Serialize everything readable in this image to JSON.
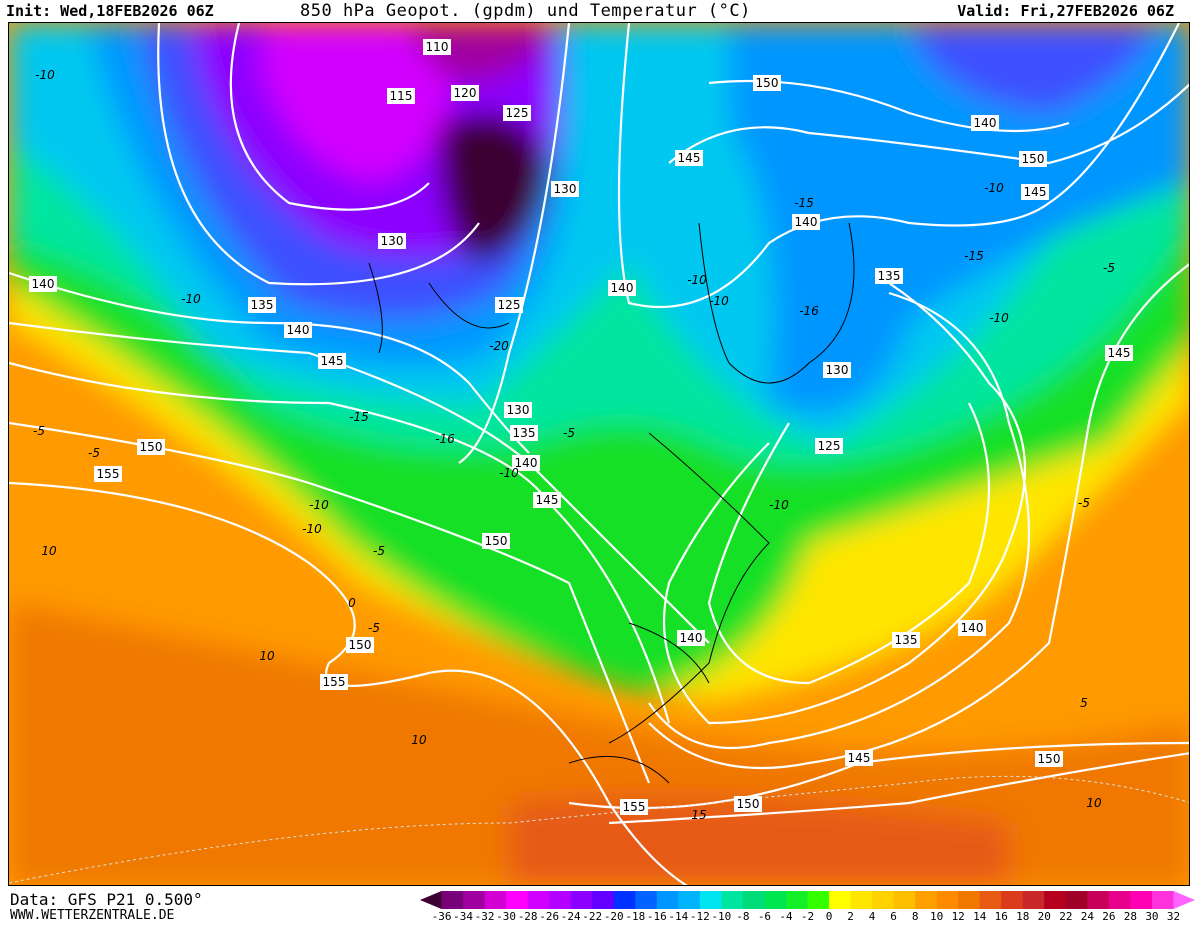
{
  "header": {
    "init": "Init: Wed,18FEB2026 06Z",
    "title": "850 hPa Geopot. (gpdm) und Temperatur (°C)",
    "valid": "Valid: Fri,27FEB2026 06Z"
  },
  "footer": {
    "data_source": "Data: GFS P21 0.500°",
    "website": "WWW.WETTERZENTRALE.DE"
  },
  "legend": {
    "ticks": [
      "-36",
      "-34",
      "-32",
      "-30",
      "-28",
      "-26",
      "-24",
      "-22",
      "-20",
      "-18",
      "-16",
      "-14",
      "-12",
      "-10",
      "-8",
      "-6",
      "-4",
      "-2",
      "0",
      "2",
      "4",
      "6",
      "8",
      "10",
      "12",
      "14",
      "16",
      "18",
      "20",
      "22",
      "24",
      "26",
      "28",
      "30",
      "32"
    ],
    "colors": [
      "#3c0032",
      "#780078",
      "#a000a0",
      "#d200d2",
      "#ff00ff",
      "#d200ff",
      "#b400ff",
      "#8c00ff",
      "#6400ff",
      "#0032ff",
      "#0064ff",
      "#0096ff",
      "#00b4ff",
      "#00e6f0",
      "#00e6a0",
      "#00dc78",
      "#00e650",
      "#14f028",
      "#32ff00",
      "#ffff00",
      "#ffe600",
      "#ffd200",
      "#ffbe00",
      "#ffa000",
      "#ff8c00",
      "#f07800",
      "#e65a14",
      "#dc3c1e",
      "#c82828",
      "#b4001e",
      "#a00028",
      "#c8005a",
      "#e6008c",
      "#ff00b4",
      "#ff32dc",
      "#ff64ff"
    ]
  },
  "map": {
    "geopotential_labels": [
      "110",
      "115",
      "120",
      "125",
      "130",
      "130",
      "125",
      "135",
      "140",
      "140",
      "145",
      "150",
      "155",
      "130",
      "135",
      "140",
      "145",
      "150",
      "140",
      "150",
      "155",
      "155",
      "150",
      "140",
      "145",
      "150",
      "145",
      "150",
      "140",
      "135",
      "130",
      "125",
      "135",
      "140",
      "145",
      "150",
      "140",
      "145"
    ],
    "temperature_labels": [
      "-10",
      "-10",
      "-5",
      "-5",
      "-10",
      "-15",
      "-20",
      "-15",
      "-10",
      "-5",
      "-10",
      "-5",
      "0",
      "-5",
      "10",
      "10",
      "15",
      "10",
      "-10",
      "-15",
      "-16",
      "-10",
      "-5",
      "-10",
      "-5",
      "5",
      "10",
      "-10",
      "-16",
      "-10"
    ]
  }
}
